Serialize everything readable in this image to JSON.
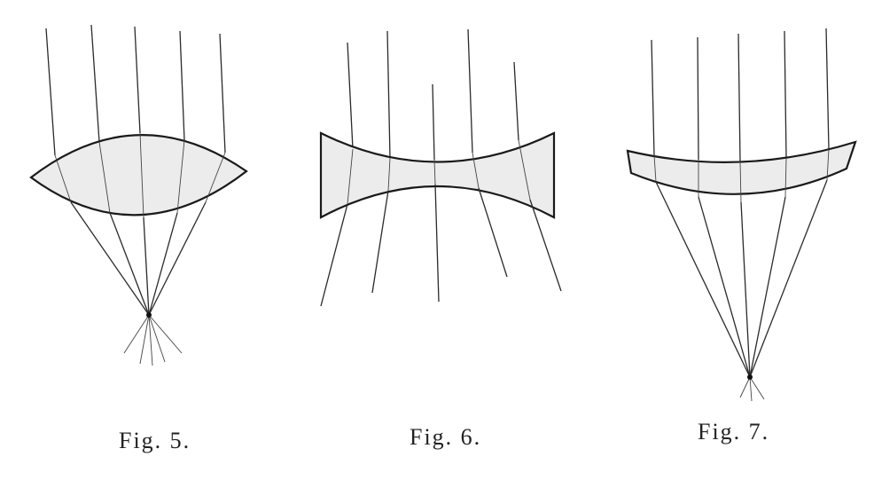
{
  "figures": [
    {
      "id": "fig5",
      "caption": "Fig. 5.",
      "lens_type": "biconvex (converging)"
    },
    {
      "id": "fig6",
      "caption": "Fig. 6.",
      "lens_type": "biconcave (diverging)"
    },
    {
      "id": "fig7",
      "caption": "Fig. 7.",
      "lens_type": "concavo-convex meniscus (converging)"
    }
  ]
}
